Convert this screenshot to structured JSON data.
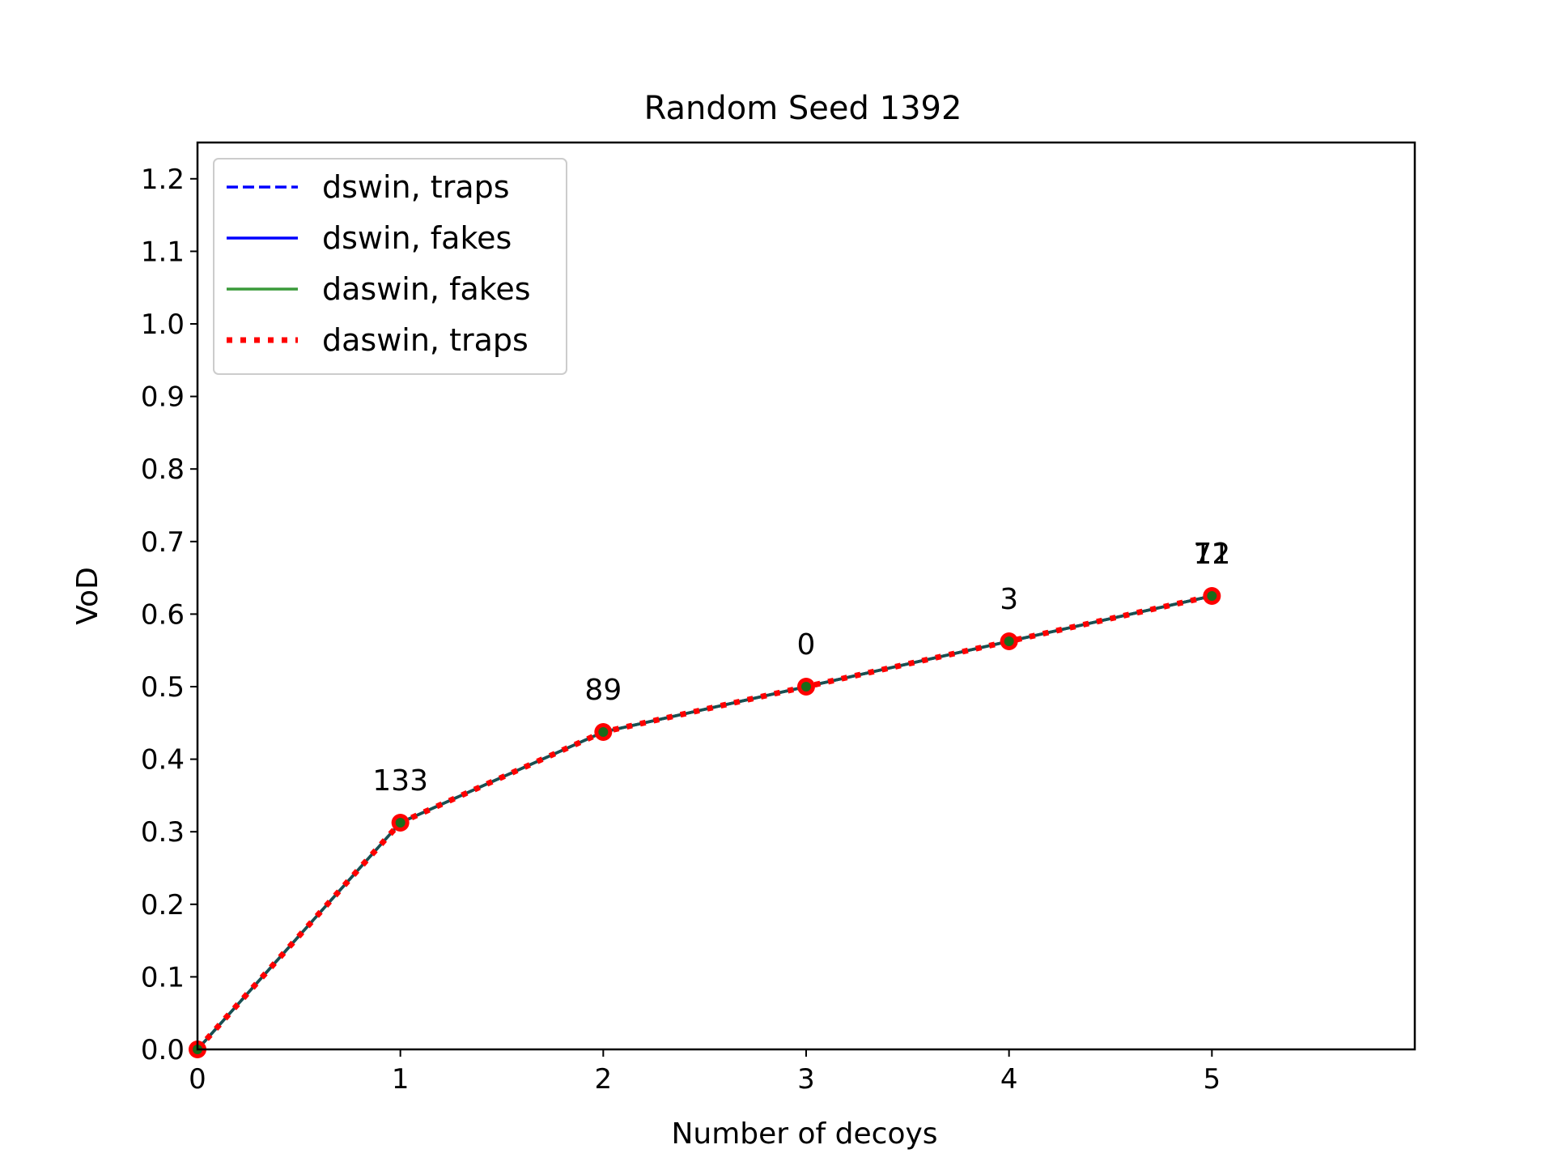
{
  "chart_data": {
    "type": "line",
    "title": "Random Seed 1392",
    "xlabel": "Number of decoys",
    "ylabel": "VoD",
    "xlim": [
      0,
      6
    ],
    "ylim": [
      0,
      1.25
    ],
    "xticks": [
      "0",
      "1",
      "2",
      "3",
      "4",
      "5"
    ],
    "yticks": [
      "0.0",
      "0.1",
      "0.2",
      "0.3",
      "0.4",
      "0.5",
      "0.6",
      "0.7",
      "0.8",
      "0.9",
      "1.0",
      "1.1",
      "1.2"
    ],
    "x": [
      0,
      1,
      2,
      3,
      4,
      5
    ],
    "series": [
      {
        "name": "dswin, traps",
        "values": [
          0.0,
          0.3125,
          0.4375,
          0.5,
          0.5625,
          0.625
        ],
        "color": "#0000ff",
        "style": "dashed"
      },
      {
        "name": "dswin, fakes",
        "values": [
          0.0,
          0.3125,
          0.4375,
          0.5,
          0.5625,
          0.625
        ],
        "color": "#0000ff",
        "style": "solid"
      },
      {
        "name": "daswin, fakes",
        "values": [
          0.0,
          0.3125,
          0.4375,
          0.5,
          0.5625,
          0.625
        ],
        "color": "#3a9a3a",
        "style": "solid"
      },
      {
        "name": "daswin, traps",
        "values": [
          0.0,
          0.3125,
          0.4375,
          0.5,
          0.5625,
          0.625
        ],
        "color": "#ff0000",
        "style": "dotted"
      }
    ],
    "point_labels": [
      {
        "x": 1,
        "y": 0.3125,
        "text": "133"
      },
      {
        "x": 2,
        "y": 0.4375,
        "text": "89"
      },
      {
        "x": 3,
        "y": 0.5,
        "text": "0"
      },
      {
        "x": 4,
        "y": 0.5625,
        "text": "3"
      },
      {
        "x": 5,
        "y": 0.625,
        "text": "12"
      },
      {
        "x": 5,
        "y": 0.625,
        "text": "71"
      }
    ],
    "legend_position": "top-left",
    "grid": false,
    "marker_color": "#ff0000",
    "marker_inner_color": "#1a6b1a",
    "overlay_line_color": "#1a5050"
  }
}
